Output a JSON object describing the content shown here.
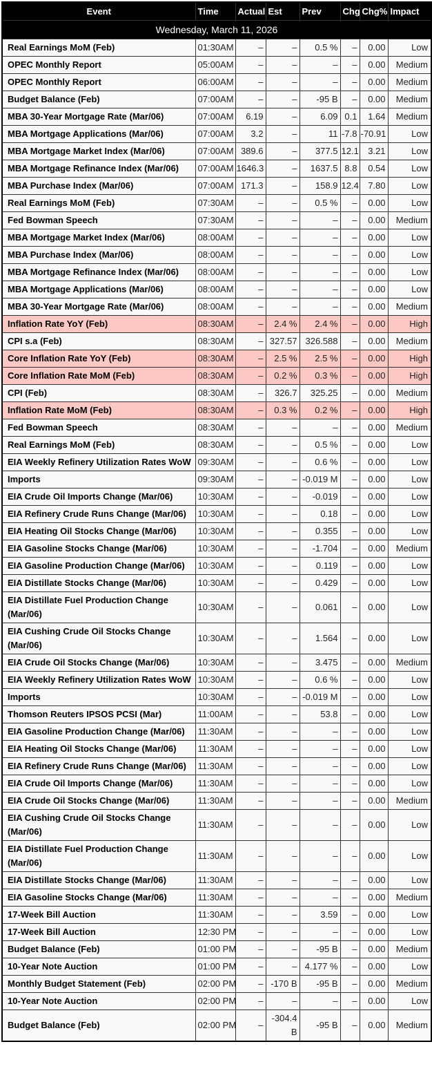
{
  "table": {
    "columns": [
      "Event",
      "Time",
      "Actual",
      "Est",
      "Prev",
      "Chg",
      "Chg%",
      "Impact"
    ],
    "date_label": "Wednesday, March 11, 2026",
    "rows": [
      {
        "event": "Real Earnings MoM (Feb)",
        "time": "01:30AM",
        "actual": "–",
        "est": "–",
        "prev": "0.5 %",
        "chg": "–",
        "chg_pct": "0.00",
        "impact": "Low"
      },
      {
        "event": "OPEC Monthly Report",
        "time": "05:00AM",
        "actual": "–",
        "est": "–",
        "prev": "–",
        "chg": "–",
        "chg_pct": "0.00",
        "impact": "Medium"
      },
      {
        "event": "OPEC Monthly Report",
        "time": "06:00AM",
        "actual": "–",
        "est": "–",
        "prev": "–",
        "chg": "–",
        "chg_pct": "0.00",
        "impact": "Medium"
      },
      {
        "event": "Budget Balance (Feb)",
        "time": "07:00AM",
        "actual": "–",
        "est": "–",
        "prev": "-95 B",
        "chg": "–",
        "chg_pct": "0.00",
        "impact": "Medium"
      },
      {
        "event": "MBA 30-Year Mortgage Rate (Mar/06)",
        "time": "07:00AM",
        "actual": "6.19",
        "est": "–",
        "prev": "6.09",
        "chg": "0.1",
        "chg_pct": "1.64",
        "impact": "Medium"
      },
      {
        "event": "MBA Mortgage Applications (Mar/06)",
        "time": "07:00AM",
        "actual": "3.2",
        "est": "–",
        "prev": "11",
        "chg": "-7.8",
        "chg_pct": "-70.91",
        "impact": "Low"
      },
      {
        "event": "MBA Mortgage Market Index (Mar/06)",
        "time": "07:00AM",
        "actual": "389.6",
        "est": "–",
        "prev": "377.5",
        "chg": "12.1",
        "chg_pct": "3.21",
        "impact": "Low"
      },
      {
        "event": "MBA Mortgage Refinance Index (Mar/06)",
        "time": "07:00AM",
        "actual": "1646.3",
        "est": "–",
        "prev": "1637.5",
        "chg": "8.8",
        "chg_pct": "0.54",
        "impact": "Low"
      },
      {
        "event": "MBA Purchase Index (Mar/06)",
        "time": "07:00AM",
        "actual": "171.3",
        "est": "–",
        "prev": "158.9",
        "chg": "12.4",
        "chg_pct": "7.80",
        "impact": "Low"
      },
      {
        "event": "Real Earnings MoM (Feb)",
        "time": "07:30AM",
        "actual": "–",
        "est": "–",
        "prev": "0.5 %",
        "chg": "–",
        "chg_pct": "0.00",
        "impact": "Low"
      },
      {
        "event": "Fed Bowman Speech",
        "time": "07:30AM",
        "actual": "–",
        "est": "–",
        "prev": "–",
        "chg": "–",
        "chg_pct": "0.00",
        "impact": "Medium"
      },
      {
        "event": "MBA Mortgage Market Index (Mar/06)",
        "time": "08:00AM",
        "actual": "–",
        "est": "–",
        "prev": "–",
        "chg": "–",
        "chg_pct": "0.00",
        "impact": "Low"
      },
      {
        "event": "MBA Purchase Index (Mar/06)",
        "time": "08:00AM",
        "actual": "–",
        "est": "–",
        "prev": "–",
        "chg": "–",
        "chg_pct": "0.00",
        "impact": "Low"
      },
      {
        "event": "MBA Mortgage Refinance Index (Mar/06)",
        "time": "08:00AM",
        "actual": "–",
        "est": "–",
        "prev": "–",
        "chg": "–",
        "chg_pct": "0.00",
        "impact": "Low"
      },
      {
        "event": "MBA Mortgage Applications (Mar/06)",
        "time": "08:00AM",
        "actual": "–",
        "est": "–",
        "prev": "–",
        "chg": "–",
        "chg_pct": "0.00",
        "impact": "Low"
      },
      {
        "event": "MBA 30-Year Mortgage Rate (Mar/06)",
        "time": "08:00AM",
        "actual": "–",
        "est": "–",
        "prev": "–",
        "chg": "–",
        "chg_pct": "0.00",
        "impact": "Medium"
      },
      {
        "event": "Inflation Rate YoY (Feb)",
        "time": "08:30AM",
        "actual": "–",
        "est": "2.4 %",
        "prev": "2.4 %",
        "chg": "–",
        "chg_pct": "0.00",
        "impact": "High"
      },
      {
        "event": "CPI s.a (Feb)",
        "time": "08:30AM",
        "actual": "–",
        "est": "327.57",
        "prev": "326.588",
        "chg": "–",
        "chg_pct": "0.00",
        "impact": "Medium"
      },
      {
        "event": "Core Inflation Rate YoY (Feb)",
        "time": "08:30AM",
        "actual": "–",
        "est": "2.5 %",
        "prev": "2.5 %",
        "chg": "–",
        "chg_pct": "0.00",
        "impact": "High"
      },
      {
        "event": "Core Inflation Rate MoM (Feb)",
        "time": "08:30AM",
        "actual": "–",
        "est": "0.2 %",
        "prev": "0.3 %",
        "chg": "–",
        "chg_pct": "0.00",
        "impact": "High"
      },
      {
        "event": "CPI (Feb)",
        "time": "08:30AM",
        "actual": "–",
        "est": "326.7",
        "prev": "325.25",
        "chg": "–",
        "chg_pct": "0.00",
        "impact": "Medium"
      },
      {
        "event": "Inflation Rate MoM (Feb)",
        "time": "08:30AM",
        "actual": "–",
        "est": "0.3 %",
        "prev": "0.2 %",
        "chg": "–",
        "chg_pct": "0.00",
        "impact": "High"
      },
      {
        "event": "Fed Bowman Speech",
        "time": "08:30AM",
        "actual": "–",
        "est": "–",
        "prev": "–",
        "chg": "–",
        "chg_pct": "0.00",
        "impact": "Medium"
      },
      {
        "event": "Real Earnings MoM (Feb)",
        "time": "08:30AM",
        "actual": "–",
        "est": "–",
        "prev": "0.5 %",
        "chg": "–",
        "chg_pct": "0.00",
        "impact": "Low"
      },
      {
        "event": "EIA Weekly Refinery Utilization Rates WoW",
        "time": "09:30AM",
        "actual": "–",
        "est": "–",
        "prev": "0.6 %",
        "chg": "–",
        "chg_pct": "0.00",
        "impact": "Low"
      },
      {
        "event": "Imports",
        "time": "09:30AM",
        "actual": "–",
        "est": "–",
        "prev": "-0.019 M",
        "chg": "–",
        "chg_pct": "0.00",
        "impact": "Low"
      },
      {
        "event": "EIA Crude Oil Imports Change (Mar/06)",
        "time": "10:30AM",
        "actual": "–",
        "est": "–",
        "prev": "-0.019",
        "chg": "–",
        "chg_pct": "0.00",
        "impact": "Low"
      },
      {
        "event": "EIA Refinery Crude Runs Change (Mar/06)",
        "time": "10:30AM",
        "actual": "–",
        "est": "–",
        "prev": "0.18",
        "chg": "–",
        "chg_pct": "0.00",
        "impact": "Low"
      },
      {
        "event": "EIA Heating Oil Stocks Change (Mar/06)",
        "time": "10:30AM",
        "actual": "–",
        "est": "–",
        "prev": "0.355",
        "chg": "–",
        "chg_pct": "0.00",
        "impact": "Low"
      },
      {
        "event": "EIA Gasoline Stocks Change (Mar/06)",
        "time": "10:30AM",
        "actual": "–",
        "est": "–",
        "prev": "-1.704",
        "chg": "–",
        "chg_pct": "0.00",
        "impact": "Medium"
      },
      {
        "event": "EIA Gasoline Production Change (Mar/06)",
        "time": "10:30AM",
        "actual": "–",
        "est": "–",
        "prev": "0.119",
        "chg": "–",
        "chg_pct": "0.00",
        "impact": "Low"
      },
      {
        "event": "EIA Distillate Stocks Change (Mar/06)",
        "time": "10:30AM",
        "actual": "–",
        "est": "–",
        "prev": "0.429",
        "chg": "–",
        "chg_pct": "0.00",
        "impact": "Low"
      },
      {
        "event": "EIA Distillate Fuel Production Change (Mar/06)",
        "time": "10:30AM",
        "actual": "–",
        "est": "–",
        "prev": "0.061",
        "chg": "–",
        "chg_pct": "0.00",
        "impact": "Low"
      },
      {
        "event": "EIA Cushing Crude Oil Stocks Change (Mar/06)",
        "time": "10:30AM",
        "actual": "–",
        "est": "–",
        "prev": "1.564",
        "chg": "–",
        "chg_pct": "0.00",
        "impact": "Low"
      },
      {
        "event": "EIA Crude Oil Stocks Change (Mar/06)",
        "time": "10:30AM",
        "actual": "–",
        "est": "–",
        "prev": "3.475",
        "chg": "–",
        "chg_pct": "0.00",
        "impact": "Medium"
      },
      {
        "event": "EIA Weekly Refinery Utilization Rates WoW",
        "time": "10:30AM",
        "actual": "–",
        "est": "–",
        "prev": "0.6 %",
        "chg": "–",
        "chg_pct": "0.00",
        "impact": "Low"
      },
      {
        "event": "Imports",
        "time": "10:30AM",
        "actual": "–",
        "est": "–",
        "prev": "-0.019 M",
        "chg": "–",
        "chg_pct": "0.00",
        "impact": "Low"
      },
      {
        "event": "Thomson Reuters IPSOS PCSI (Mar)",
        "time": "11:00AM",
        "actual": "–",
        "est": "–",
        "prev": "53.8",
        "chg": "–",
        "chg_pct": "0.00",
        "impact": "Low"
      },
      {
        "event": "EIA Gasoline Production Change (Mar/06)",
        "time": "11:30AM",
        "actual": "–",
        "est": "–",
        "prev": "–",
        "chg": "–",
        "chg_pct": "0.00",
        "impact": "Low"
      },
      {
        "event": "EIA Heating Oil Stocks Change (Mar/06)",
        "time": "11:30AM",
        "actual": "–",
        "est": "–",
        "prev": "–",
        "chg": "–",
        "chg_pct": "0.00",
        "impact": "Low"
      },
      {
        "event": "EIA Refinery Crude Runs Change (Mar/06)",
        "time": "11:30AM",
        "actual": "–",
        "est": "–",
        "prev": "–",
        "chg": "–",
        "chg_pct": "0.00",
        "impact": "Low"
      },
      {
        "event": "EIA Crude Oil Imports Change (Mar/06)",
        "time": "11:30AM",
        "actual": "–",
        "est": "–",
        "prev": "–",
        "chg": "–",
        "chg_pct": "0.00",
        "impact": "Low"
      },
      {
        "event": "EIA Crude Oil Stocks Change (Mar/06)",
        "time": "11:30AM",
        "actual": "–",
        "est": "–",
        "prev": "–",
        "chg": "–",
        "chg_pct": "0.00",
        "impact": "Medium"
      },
      {
        "event": "EIA Cushing Crude Oil Stocks Change (Mar/06)",
        "time": "11:30AM",
        "actual": "–",
        "est": "–",
        "prev": "–",
        "chg": "–",
        "chg_pct": "0.00",
        "impact": "Low"
      },
      {
        "event": "EIA Distillate Fuel Production Change (Mar/06)",
        "time": "11:30AM",
        "actual": "–",
        "est": "–",
        "prev": "–",
        "chg": "–",
        "chg_pct": "0.00",
        "impact": "Low"
      },
      {
        "event": "EIA Distillate Stocks Change (Mar/06)",
        "time": "11:30AM",
        "actual": "–",
        "est": "–",
        "prev": "–",
        "chg": "–",
        "chg_pct": "0.00",
        "impact": "Low"
      },
      {
        "event": "EIA Gasoline Stocks Change (Mar/06)",
        "time": "11:30AM",
        "actual": "–",
        "est": "–",
        "prev": "–",
        "chg": "–",
        "chg_pct": "0.00",
        "impact": "Medium"
      },
      {
        "event": "17-Week Bill Auction",
        "time": "11:30AM",
        "actual": "–",
        "est": "–",
        "prev": "3.59",
        "chg": "–",
        "chg_pct": "0.00",
        "impact": "Low"
      },
      {
        "event": "17-Week Bill Auction",
        "time": "12:30 PM",
        "actual": "–",
        "est": "–",
        "prev": "–",
        "chg": "–",
        "chg_pct": "0.00",
        "impact": "Low"
      },
      {
        "event": "Budget Balance (Feb)",
        "time": "01:00 PM",
        "actual": "–",
        "est": "–",
        "prev": "-95 B",
        "chg": "–",
        "chg_pct": "0.00",
        "impact": "Medium"
      },
      {
        "event": "10-Year Note Auction",
        "time": "01:00 PM",
        "actual": "–",
        "est": "–",
        "prev": "4.177 %",
        "chg": "–",
        "chg_pct": "0.00",
        "impact": "Low"
      },
      {
        "event": "Monthly Budget Statement (Feb)",
        "time": "02:00 PM",
        "actual": "–",
        "est": "-170 B",
        "prev": "-95 B",
        "chg": "–",
        "chg_pct": "0.00",
        "impact": "Medium"
      },
      {
        "event": "10-Year Note Auction",
        "time": "02:00 PM",
        "actual": "–",
        "est": "–",
        "prev": "–",
        "chg": "–",
        "chg_pct": "0.00",
        "impact": "Low"
      },
      {
        "event": "Budget Balance (Feb)",
        "time": "02:00 PM",
        "actual": "–",
        "est": "-304.4 B",
        "prev": "-95 B",
        "chg": "–",
        "chg_pct": "0.00",
        "impact": "Medium"
      }
    ]
  },
  "colors": {
    "header_bg": "#000000",
    "header_text": "#ffffff",
    "row_bg": "#f9f9f9",
    "high_row_bg": "#fbc8c4",
    "border_outer": "#000000",
    "border_inner": "#333333",
    "event_text": "#000000",
    "value_text": "#222222"
  }
}
